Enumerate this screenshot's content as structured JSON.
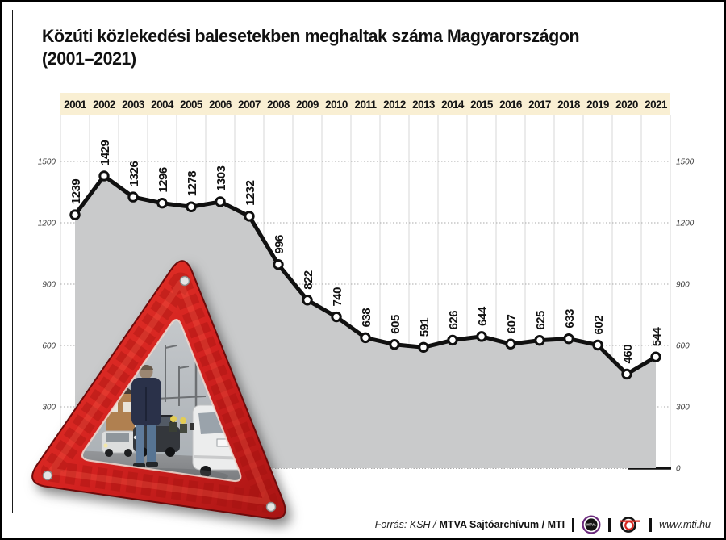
{
  "title": {
    "line1": "Közúti közlekedési balesetekben meghaltak száma Magyarországon",
    "line2": "(2001–2021)"
  },
  "chart_data": {
    "type": "line",
    "title": "Közúti közlekedési balesetekben meghaltak száma Magyarországon (2001–2021)",
    "categories": [
      "2001",
      "2002",
      "2003",
      "2004",
      "2005",
      "2006",
      "2007",
      "2008",
      "2009",
      "2010",
      "2011",
      "2012",
      "2013",
      "2014",
      "2015",
      "2016",
      "2017",
      "2018",
      "2019",
      "2020",
      "2021"
    ],
    "values": [
      1239,
      1429,
      1326,
      1296,
      1278,
      1303,
      1232,
      996,
      822,
      740,
      638,
      605,
      591,
      626,
      644,
      607,
      625,
      633,
      602,
      460,
      544
    ],
    "xlabel": "",
    "ylabel": "",
    "ylim": [
      0,
      1500
    ],
    "yticks": [
      0,
      300,
      600,
      900,
      1200,
      1500
    ],
    "grid": true,
    "legend_position": "none",
    "area_fill": true,
    "marker": "open-circle"
  },
  "axis": {
    "left_ticks": [
      "1500",
      "1200",
      "900",
      "600",
      "300"
    ],
    "right_ticks": [
      "1500",
      "1200",
      "900",
      "600",
      "300",
      "0"
    ]
  },
  "footer": {
    "source_italic": "Forrás: KSH /",
    "source_bold": "MTVA Sajtóarchívum / MTI",
    "mtva_logo_label": "MTVA",
    "website": "www.mti.hu"
  },
  "colors": {
    "band_bg": "#f9efd3",
    "area_gray": "#c9cacb",
    "line_black": "#101010",
    "triangle_red": "#d42220",
    "triangle_red_dark": "#8e0f10",
    "mtva_purple": "#6b2a7d",
    "mti_red": "#d6261f"
  }
}
